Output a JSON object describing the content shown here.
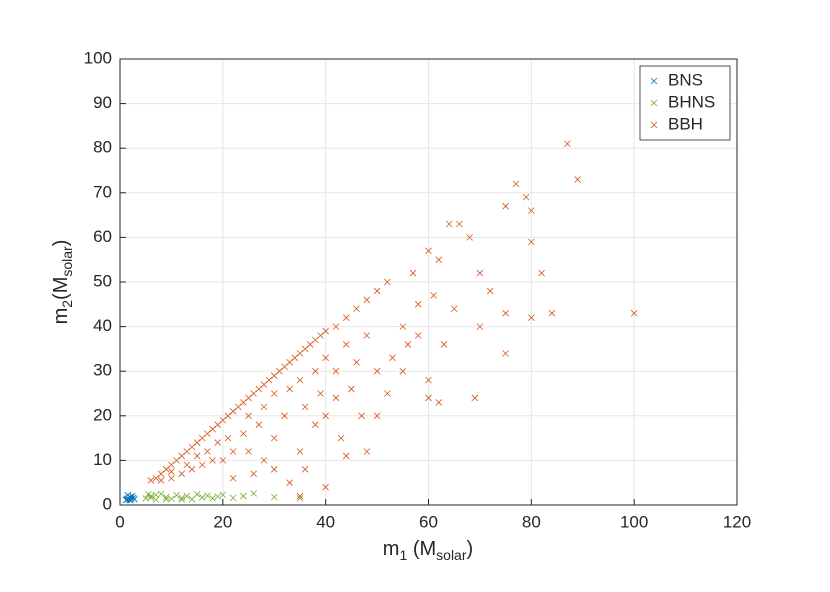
{
  "chart_data": {
    "type": "scatter",
    "xlabel_parts": [
      "m",
      "1",
      " (M",
      "solar",
      ")"
    ],
    "ylabel_parts": [
      "m",
      "2",
      "(M",
      "solar",
      ")"
    ],
    "xlim": [
      0,
      120
    ],
    "ylim": [
      0,
      100
    ],
    "xticks": [
      0,
      20,
      40,
      60,
      80,
      100,
      120
    ],
    "yticks": [
      0,
      10,
      20,
      30,
      40,
      50,
      60,
      70,
      80,
      90,
      100
    ],
    "grid": true,
    "legend": "northeast",
    "series": [
      {
        "name": "BNS",
        "color": "#0072BD",
        "x": [
          1.2,
          1.4,
          1.6,
          1.8,
          2.0,
          2.2,
          2.4,
          2.6,
          1.5,
          2.8,
          1.3,
          2.0
        ],
        "values": [
          1.1,
          1.3,
          1.5,
          1.2,
          1.8,
          1.4,
          2.0,
          1.6,
          2.2,
          1.3,
          1.2,
          1.1
        ]
      },
      {
        "name": "BHNS",
        "color": "#77AC30",
        "x": [
          5,
          6,
          7,
          8,
          9,
          10,
          11,
          12,
          13,
          14,
          15,
          16,
          17,
          18,
          19,
          20,
          22,
          24,
          26,
          30,
          6,
          7,
          9,
          5.5,
          12,
          35
        ],
        "values": [
          1.5,
          2.0,
          1.2,
          2.5,
          1.8,
          1.4,
          2.2,
          1.6,
          2.0,
          1.3,
          2.4,
          1.7,
          2.1,
          1.5,
          1.9,
          2.3,
          1.6,
          2.0,
          2.6,
          1.8,
          1.6,
          2.3,
          1.3,
          2.4,
          1.2,
          1.5
        ]
      },
      {
        "name": "BBH",
        "color": "#D95319",
        "x": [
          6,
          7,
          8,
          9,
          10,
          11,
          12,
          13,
          14,
          15,
          16,
          17,
          18,
          19,
          20,
          21,
          22,
          23,
          24,
          25,
          26,
          27,
          28,
          29,
          30,
          31,
          32,
          33,
          34,
          35,
          36,
          37,
          38,
          39,
          40,
          42,
          44,
          46,
          48,
          50,
          52,
          8,
          10,
          12,
          14,
          16,
          18,
          10,
          13,
          15,
          17,
          19,
          21,
          22,
          24,
          25,
          27,
          28,
          30,
          30,
          32,
          33,
          35,
          36,
          38,
          39,
          40,
          42,
          44,
          45,
          48,
          20,
          25,
          28,
          30,
          26,
          22,
          35,
          38,
          40,
          42,
          46,
          47,
          50,
          43,
          36,
          33,
          60,
          62,
          64,
          66,
          68,
          70,
          75,
          77,
          79,
          80,
          82,
          87,
          89,
          80,
          72,
          75,
          80,
          84,
          100,
          61,
          65,
          70,
          75,
          63,
          58,
          55,
          60,
          62,
          69,
          53,
          56,
          60,
          48,
          44,
          40,
          35,
          52,
          58,
          57,
          55,
          50
        ],
        "values": [
          5.5,
          6,
          7,
          8,
          9,
          10,
          11,
          12,
          13,
          14,
          15,
          16,
          17,
          18,
          19,
          20,
          21,
          22,
          23,
          24,
          25,
          26,
          27,
          28,
          29,
          30,
          31,
          32,
          33,
          34,
          35,
          36,
          37,
          38,
          39,
          40,
          42,
          44,
          46,
          48,
          50,
          5.5,
          6,
          7,
          8,
          9,
          10,
          7.5,
          9,
          11,
          12,
          14,
          15,
          12,
          16,
          20,
          18,
          22,
          25,
          15,
          20,
          26,
          28,
          22,
          30,
          25,
          33,
          30,
          36,
          26,
          38,
          10,
          12,
          10,
          8,
          7,
          6,
          12,
          18,
          20,
          24,
          32,
          20,
          30,
          15,
          8,
          5,
          57,
          55,
          63,
          63,
          60,
          52,
          67,
          72,
          69,
          66,
          52,
          81,
          73,
          59,
          48,
          43,
          42,
          43,
          43,
          47,
          44,
          40,
          34,
          36,
          38,
          40,
          24,
          23,
          24,
          33,
          36,
          28,
          12,
          11,
          4,
          2,
          25,
          45,
          52,
          30,
          20
        ]
      }
    ]
  }
}
